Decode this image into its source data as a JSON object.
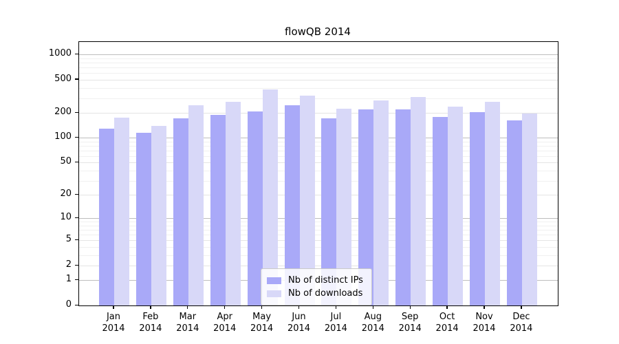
{
  "chart_data": {
    "type": "bar",
    "title": "flowQB 2014",
    "categories": [
      "Jan",
      "Feb",
      "Mar",
      "Apr",
      "May",
      "Jun",
      "Jul",
      "Aug",
      "Sep",
      "Oct",
      "Nov",
      "Dec"
    ],
    "category_year": "2014",
    "series": [
      {
        "name": "Nb of distinct IPs",
        "color": "#a9a9f8",
        "values": [
          128,
          116,
          172,
          190,
          208,
          246,
          171,
          222,
          222,
          179,
          203,
          163
        ]
      },
      {
        "name": "Nb of downloads",
        "color": "#d8d8f8",
        "values": [
          175,
          140,
          248,
          274,
          380,
          320,
          226,
          280,
          310,
          236,
          274,
          196
        ]
      }
    ],
    "xlabel": "",
    "ylabel": "",
    "y_scale": "symlog-log1p",
    "y_ticks": [
      1000,
      500,
      200,
      100,
      50,
      20,
      10,
      5,
      2,
      1,
      0
    ],
    "ylim": [
      0,
      1414
    ],
    "grid": true,
    "legend_position": "lower center",
    "colors": {
      "axis": "#000000",
      "grid_major": "#bdbdbd",
      "grid_minor": "#f0f0f0",
      "background": "#ffffff"
    }
  }
}
